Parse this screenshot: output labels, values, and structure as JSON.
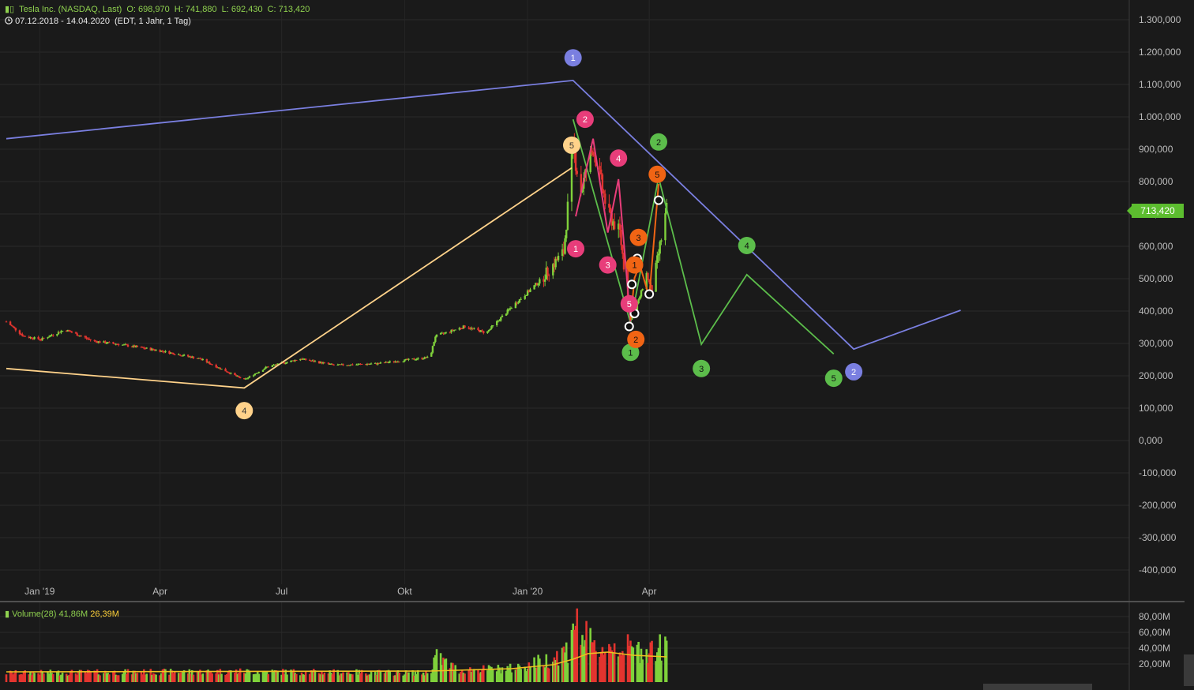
{
  "header": {
    "title": "Tesla Inc. (NASDAQ, Last)",
    "open": "O: 698,970",
    "high": "H: 741,880",
    "low": "L: 692,430",
    "close": "C: 713,420",
    "range": "07.12.2018 - 14.04.2020",
    "settings": "(EDT, 1 Jahr, 1 Tag)"
  },
  "last_price": "713,420",
  "volume_header": {
    "label": "Volume(28)",
    "value1": "41,86M",
    "value2": "26,39M"
  },
  "colors": {
    "background": "#1a1a1a",
    "grid": "#2b2b2b",
    "up": "#7fd13b",
    "down": "#e3342f",
    "wave_blue": "#7a7fe0",
    "wave_orange_light": "#ffd28a",
    "wave_green": "#5cbd4b",
    "wave_pink": "#e83d7a",
    "wave_orange": "#f06414",
    "ma": "#f0c020"
  },
  "chart_data": [
    {
      "type": "candlestick",
      "title": "Tesla Inc. (NASDAQ, Last)",
      "x_tick_labels": [
        "Jan '19",
        "Apr",
        "Jul",
        "Okt",
        "Jan '20",
        "Apr"
      ],
      "y_tick_labels": [
        "1.300,000",
        "1.200,000",
        "1.100,000",
        "1.000,000",
        "900,000",
        "800,000",
        "700,000",
        "600,000",
        "500,000",
        "400,000",
        "300,000",
        "200,000",
        "100,000",
        "0,000",
        "-100,000",
        "-200,000",
        "-300,000",
        "-400,000"
      ],
      "ylim": [
        -400,
        1300
      ],
      "price_path": [
        [
          "2018-12-07",
          365
        ],
        [
          "2018-12-20",
          320
        ],
        [
          "2019-01-02",
          310
        ],
        [
          "2019-01-20",
          340
        ],
        [
          "2019-02-10",
          305
        ],
        [
          "2019-03-01",
          295
        ],
        [
          "2019-04-01",
          275
        ],
        [
          "2019-05-01",
          250
        ],
        [
          "2019-06-03",
          185
        ],
        [
          "2019-06-20",
          225
        ],
        [
          "2019-07-15",
          250
        ],
        [
          "2019-08-10",
          230
        ],
        [
          "2019-09-10",
          235
        ],
        [
          "2019-10-20",
          255
        ],
        [
          "2019-10-24",
          320
        ],
        [
          "2019-11-15",
          350
        ],
        [
          "2019-12-01",
          330
        ],
        [
          "2019-12-20",
          410
        ],
        [
          "2020-01-10",
          490
        ],
        [
          "2020-01-28",
          580
        ],
        [
          "2020-02-04",
          900
        ],
        [
          "2020-02-10",
          770
        ],
        [
          "2020-02-19",
          905
        ],
        [
          "2020-03-01",
          700
        ],
        [
          "2020-03-10",
          640
        ],
        [
          "2020-03-18",
          370
        ],
        [
          "2020-03-24",
          430
        ],
        [
          "2020-03-30",
          510
        ],
        [
          "2020-04-03",
          460
        ],
        [
          "2020-04-14",
          713
        ]
      ],
      "elliott_waves": [
        {
          "color": "blue",
          "points": [
            [
              "2018-12-07",
              930
            ],
            [
              "2020-02-04",
              1110
            ],
            [
              "2020-09-01",
              280
            ],
            [
              "2020-11-20",
              400
            ]
          ],
          "labels": [
            [
              "1",
              "2020-02-04",
              1180
            ],
            [
              "2",
              "2020-09-01",
              210
            ]
          ]
        },
        {
          "color": "light-orange",
          "points": [
            [
              "2018-12-07",
              220
            ],
            [
              "2019-06-03",
              160
            ],
            [
              "2020-02-03",
              840
            ]
          ],
          "labels": [
            [
              "4",
              "2019-06-03",
              90
            ],
            [
              "5",
              "2020-02-03",
              910
            ]
          ]
        },
        {
          "color": "green",
          "points": [
            [
              "2020-02-04",
              990
            ],
            [
              "2020-03-18",
              360
            ],
            [
              "2020-04-08",
              810
            ],
            [
              "2020-05-10",
              295
            ],
            [
              "2020-06-13",
              510
            ],
            [
              "2020-08-17",
              265
            ]
          ],
          "labels": [
            [
              "1",
              "2020-03-18",
              270
            ],
            [
              "2",
              "2020-04-08",
              920
            ],
            [
              "3",
              "2020-05-10",
              220
            ],
            [
              "4",
              "2020-06-13",
              600
            ],
            [
              "5",
              "2020-08-17",
              190
            ]
          ]
        },
        {
          "color": "pink",
          "points": [
            [
              "2020-02-06",
              690
            ],
            [
              "2020-02-19",
              930
            ],
            [
              "2020-03-01",
              640
            ],
            [
              "2020-03-09",
              805
            ],
            [
              "2020-03-18",
              365
            ]
          ],
          "labels": [
            [
              "1",
              "2020-02-06",
              590
            ],
            [
              "2",
              "2020-02-13",
              990
            ],
            [
              "3",
              "2020-03-01",
              540
            ],
            [
              "4",
              "2020-03-09",
              870
            ],
            [
              "5",
              "2020-03-17",
              420
            ]
          ]
        },
        {
          "color": "orange",
          "points": [
            [
              "2020-03-18",
              370
            ],
            [
              "2020-03-21",
              500
            ],
            [
              "2020-03-25",
              540
            ],
            [
              "2020-04-01",
              440
            ],
            [
              "2020-04-08",
              790
            ]
          ],
          "labels": [
            [
              "1",
              "2020-03-21",
              540
            ],
            [
              "2",
              "2020-03-22",
              310
            ],
            [
              "3",
              "2020-03-24",
              625
            ],
            [
              "5",
              "2020-04-07",
              820
            ]
          ]
        }
      ],
      "markers": [
        [
          "2020-03-17",
          350
        ],
        [
          "2020-03-19",
          480
        ],
        [
          "2020-03-21",
          390
        ],
        [
          "2020-03-23",
          560
        ],
        [
          "2020-04-01",
          450
        ],
        [
          "2020-04-08",
          740
        ]
      ]
    },
    {
      "type": "bar",
      "title": "Volume(28)",
      "y_tick_labels": [
        "80,00M",
        "60,00M",
        "40,00M",
        "20,00M"
      ],
      "ylim": [
        0,
        95
      ],
      "volume_path": [
        [
          "2018-12-07",
          8
        ],
        [
          "2019-06-01",
          10
        ],
        [
          "2019-10-20",
          8
        ],
        [
          "2019-10-24",
          30
        ],
        [
          "2019-11-10",
          12
        ],
        [
          "2019-12-20",
          14
        ],
        [
          "2020-01-15",
          25
        ],
        [
          "2020-02-01",
          40
        ],
        [
          "2020-02-04",
          90
        ],
        [
          "2020-02-06",
          70
        ],
        [
          "2020-02-20",
          40
        ],
        [
          "2020-03-10",
          45
        ],
        [
          "2020-03-20",
          38
        ],
        [
          "2020-04-14",
          42
        ]
      ],
      "ma_path": [
        [
          "2018-12-07",
          9
        ],
        [
          "2019-10-20",
          10
        ],
        [
          "2019-12-20",
          13
        ],
        [
          "2020-01-20",
          18
        ],
        [
          "2020-02-04",
          25
        ],
        [
          "2020-02-15",
          32
        ],
        [
          "2020-03-01",
          34
        ],
        [
          "2020-03-20",
          30
        ],
        [
          "2020-04-14",
          28
        ]
      ]
    }
  ]
}
